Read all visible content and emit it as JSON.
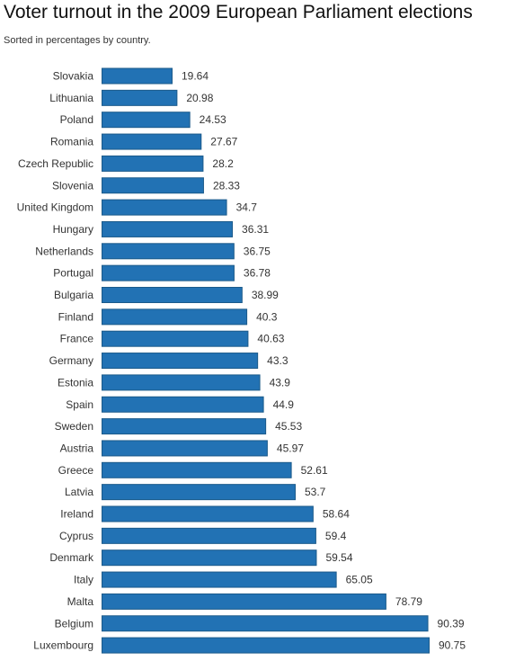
{
  "chart_data": {
    "type": "bar",
    "orientation": "horizontal",
    "title": "Voter turnout in the 2009 European Parliament elections",
    "subtitle": "Sorted in percentages by country.",
    "xlabel": "",
    "ylabel": "",
    "xlim": [
      0,
      90.75
    ],
    "grid": false,
    "legend": "none",
    "bar_color": "#2272b4",
    "categories": [
      "Slovakia",
      "Lithuania",
      "Poland",
      "Romania",
      "Czech Republic",
      "Slovenia",
      "United Kingdom",
      "Hungary",
      "Netherlands",
      "Portugal",
      "Bulgaria",
      "Finland",
      "France",
      "Germany",
      "Estonia",
      "Spain",
      "Sweden",
      "Austria",
      "Greece",
      "Latvia",
      "Ireland",
      "Cyprus",
      "Denmark",
      "Italy",
      "Malta",
      "Belgium",
      "Luxembourg"
    ],
    "values": [
      19.64,
      20.98,
      24.53,
      27.67,
      28.2,
      28.33,
      34.7,
      36.31,
      36.75,
      36.78,
      38.99,
      40.3,
      40.63,
      43.3,
      43.9,
      44.9,
      45.53,
      45.97,
      52.61,
      53.7,
      58.64,
      59.4,
      59.54,
      65.05,
      78.79,
      90.39,
      90.75
    ],
    "value_labels": [
      "19.64",
      "20.98",
      "24.53",
      "27.67",
      "28.2",
      "28.33",
      "34.7",
      "36.31",
      "36.75",
      "36.78",
      "38.99",
      "40.3",
      "40.63",
      "43.3",
      "43.9",
      "44.9",
      "45.53",
      "45.97",
      "52.61",
      "53.7",
      "58.64",
      "59.4",
      "59.54",
      "65.05",
      "78.79",
      "90.39",
      "90.75"
    ]
  }
}
